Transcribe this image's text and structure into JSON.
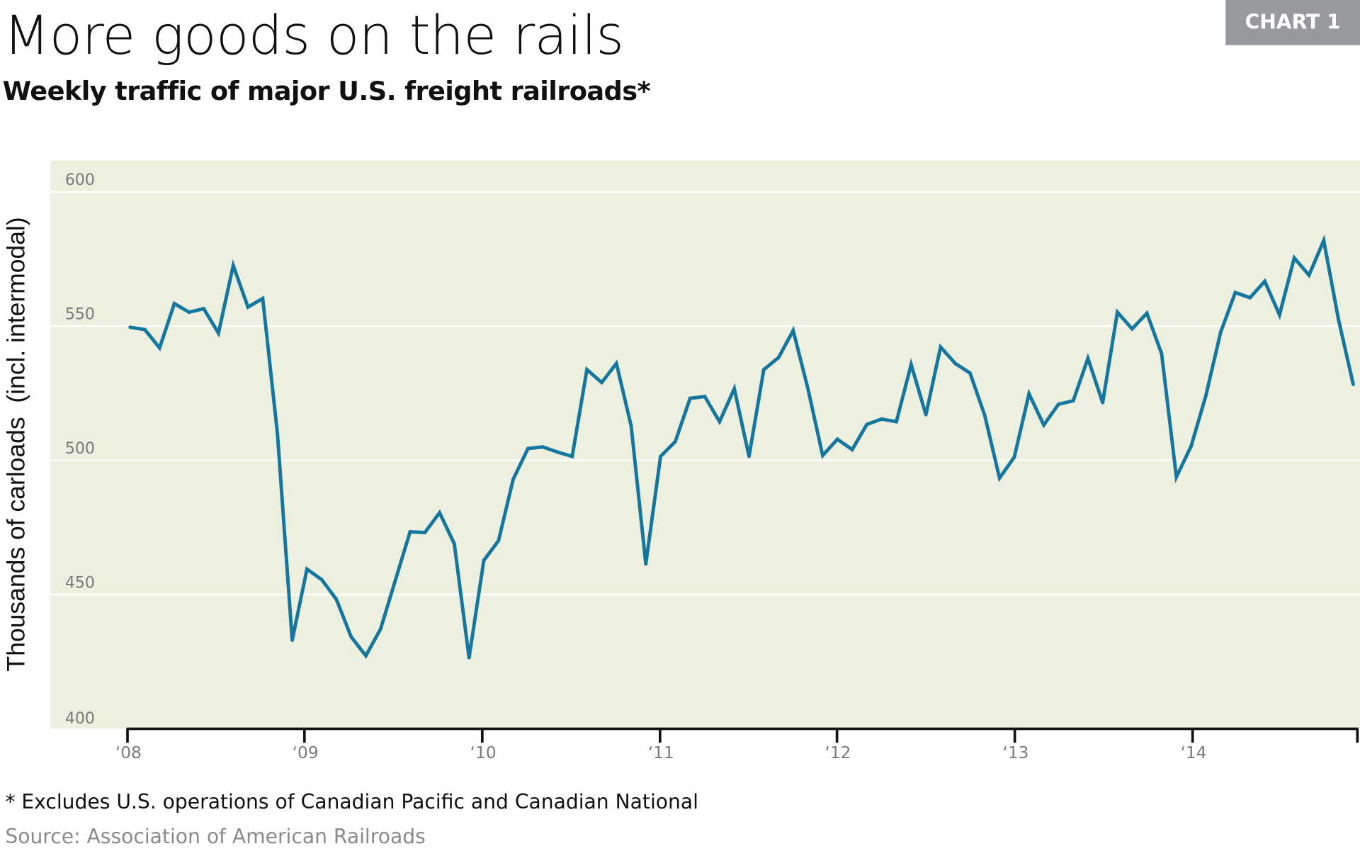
{
  "header": {
    "title": "More goods on the rails",
    "subtitle": "Weekly traffic of major U.S. freight railroads*",
    "badge": "CHART 1"
  },
  "chart_data": {
    "type": "line",
    "ylabel": "Thousands of carloads  (incl. intermodal)",
    "xlabel": "",
    "ylim": [
      400,
      600
    ],
    "yticks": [
      "400",
      "450",
      "500",
      "550",
      "600"
    ],
    "xticks": [
      "‘08",
      "‘09",
      "‘10",
      "‘11",
      "‘12",
      "‘13",
      "‘14"
    ],
    "x_start": "2008-01",
    "x_frequency": "monthly",
    "grid": "horizontal",
    "colors": {
      "line": "#1577a0",
      "background": "#eef0df",
      "grid": "#ffffff"
    },
    "series": [
      {
        "values": [
          549.6,
          548.7,
          541.9,
          558.4,
          555.2,
          556.5,
          547.4,
          572.6,
          557.1,
          560.3,
          509.9,
          433,
          459.5,
          455.6,
          448.2,
          434.3,
          427.2,
          437.2,
          455.3,
          473.4,
          473.1,
          480.5,
          468.9,
          426.5,
          462.7,
          470.1,
          493.0,
          504.4,
          505.0,
          503.1,
          501.5,
          533.8,
          529.0,
          536.1,
          512.8,
          461.4,
          501.5,
          507.0,
          523.1,
          523.8,
          514.4,
          526.7,
          501.5,
          533.8,
          538.3,
          548.4,
          526.7,
          501.8,
          507.9,
          504.0,
          513.4,
          515.4,
          514.4,
          535.7,
          517.0,
          542.2,
          536.1,
          532.5,
          516.7,
          493.4,
          501.2,
          524.8,
          513.2,
          520.9,
          522.2,
          538.0,
          521.5,
          555.2,
          549.0,
          554.8,
          539.7,
          493.8,
          505.3,
          524.1,
          547.7,
          562.5,
          560.6,
          566.7,
          554.2,
          575.4,
          569.0,
          581.9,
          552.5,
          528.3
        ]
      }
    ]
  },
  "footer": {
    "note": "* Excludes U.S. operations of Canadian Pacific and Canadian National",
    "source": "Source: Association of American Railroads"
  }
}
